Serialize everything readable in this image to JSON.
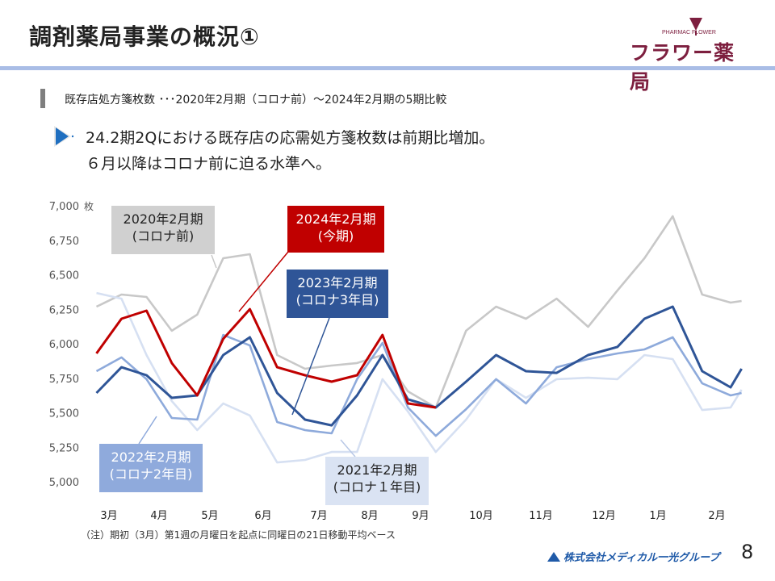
{
  "header": {
    "title": "調剤薬局事業の概況①",
    "logo_small": "PHARMAC FLOWER",
    "logo_main": "フラワー薬局"
  },
  "subtitle": "既存店処方箋枚数 ･･･2020年2月期（コロナ前）～2024年2月期の5期比較",
  "bullet": {
    "icon": "blue-triangle-arrow-icon",
    "line1": "24.2期2Qにおける既存店の応需処方箋枚数は前期比増加。",
    "line2": "６月以降はコロナ前に迫る水準へ。"
  },
  "note": "（注）期初（3月）第1週の月曜日を起点に同曜日の21日移動平均ベース",
  "footer": {
    "logo": "株式会社メディカル一光グループ",
    "page_number": "8"
  },
  "chart_data": {
    "type": "line",
    "y_unit": "枚",
    "ylim": [
      5000,
      7000
    ],
    "yticks": [
      "7,000",
      "6,750",
      "6,500",
      "6,250",
      "6,000",
      "5,750",
      "5,500",
      "5,250",
      "5,000"
    ],
    "xticks": [
      "3月",
      "4月",
      "5月",
      "6月",
      "7月",
      "8月",
      "9月",
      "10月",
      "11月",
      "12月",
      "1月",
      "2月"
    ],
    "grid": false,
    "x": [
      -0.25,
      0.25,
      0.75,
      1.25,
      1.75,
      2.25,
      2.75,
      3.25,
      3.75,
      4.25,
      4.75,
      5.25,
      5.75,
      6.25,
      6.75,
      7.25,
      7.75,
      8.25,
      8.75,
      9.25,
      9.75,
      10.25,
      10.75,
      11.25,
      11.45
    ],
    "series": [
      {
        "name": "2020年2月期",
        "label2": "(コロナ前)",
        "color": "#c8c8c8",
        "box_color": "#d0d0d0",
        "text_color": "#222222",
        "values": [
          6269,
          6357,
          6339,
          6094,
          6211,
          6620,
          6649,
          5918,
          5819,
          5842,
          5860,
          5918,
          5655,
          5538,
          6094,
          6269,
          6181,
          6327,
          6123,
          6386,
          6620,
          6924,
          6357,
          6298,
          6310
        ]
      },
      {
        "name": "2021年2月期",
        "label2": "(コロナ１年目)",
        "color": "#d6e0f2",
        "box_color": "#dae3f3",
        "text_color": "#222222",
        "values": [
          6368,
          6327,
          5918,
          5585,
          5374,
          5567,
          5480,
          5140,
          5158,
          5216,
          5216,
          5743,
          5509,
          5216,
          5450,
          5743,
          5608,
          5743,
          5754,
          5743,
          5918,
          5889,
          5520,
          5538,
          5667
        ]
      },
      {
        "name": "2022年2月期",
        "label2": "(コロナ2年目)",
        "color": "#8eaadb",
        "box_color": "#8faadc",
        "text_color": "#ffffff",
        "values": [
          5801,
          5901,
          5743,
          5462,
          5450,
          6064,
          5988,
          5433,
          5374,
          5351,
          5743,
          6006,
          5538,
          5333,
          5526,
          5743,
          5567,
          5830,
          5889,
          5930,
          5959,
          6047,
          5713,
          5626,
          5643
        ]
      },
      {
        "name": "2023年2月期",
        "label2": "(コロナ3年目)",
        "color": "#2f5597",
        "box_color": "#2f5597",
        "text_color": "#ffffff",
        "values": [
          5643,
          5830,
          5772,
          5608,
          5626,
          5918,
          6047,
          5643,
          5450,
          5409,
          5626,
          5918,
          5597,
          5538,
          5725,
          5918,
          5801,
          5789,
          5918,
          5977,
          6181,
          6269,
          5801,
          5684,
          5819
        ]
      },
      {
        "name": "2024年2月期",
        "label2": "(今期)",
        "color": "#c00000",
        "box_color": "#c00000",
        "text_color": "#ffffff",
        "values": [
          5930,
          6181,
          6240,
          5860,
          5626,
          6035,
          6251,
          5830,
          5772,
          5725,
          5772,
          6064,
          5567,
          5538,
          null,
          null,
          null,
          null,
          null,
          null,
          null,
          null,
          null,
          null,
          null
        ]
      }
    ]
  }
}
